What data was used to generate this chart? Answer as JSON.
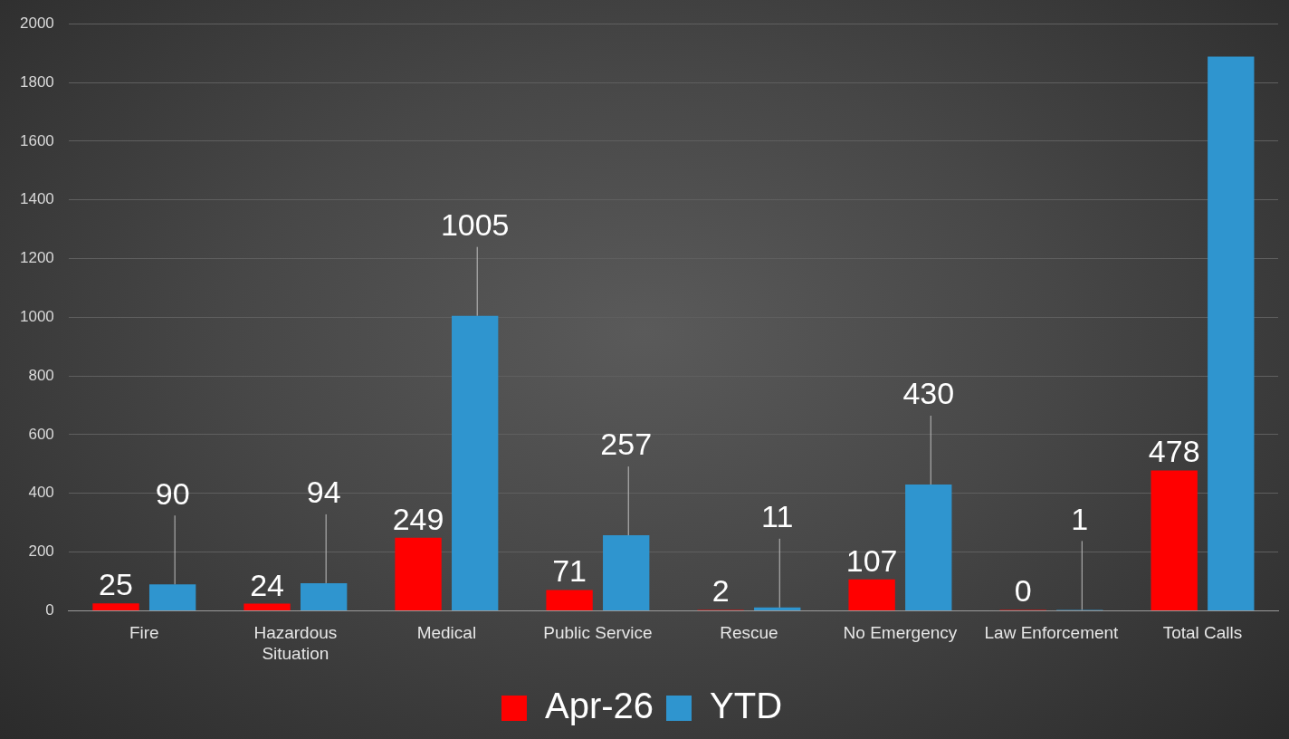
{
  "chart_data": {
    "type": "bar",
    "categories": [
      "Fire",
      "Hazardous Situation",
      "Medical",
      "Public Service",
      "Rescue",
      "No Emergency",
      "Law Enforcement",
      "Total Calls"
    ],
    "series": [
      {
        "name": "Apr-26",
        "color": "#ff0000",
        "values": [
          25,
          24,
          249,
          71,
          2,
          107,
          0,
          478
        ],
        "value_labels": [
          "25",
          "24",
          "249",
          "71",
          "2",
          "107",
          "0",
          "478"
        ]
      },
      {
        "name": "YTD",
        "color": "#2f95cf",
        "values": [
          90,
          94,
          1005,
          257,
          11,
          430,
          1,
          1888
        ],
        "value_labels": [
          "90",
          "94",
          "1005",
          "257",
          "11",
          "430",
          "1",
          null
        ]
      }
    ],
    "ylim": [
      0,
      2000
    ],
    "yticks": [
      0,
      200,
      400,
      600,
      800,
      1000,
      1200,
      1400,
      1600,
      1800,
      2000
    ],
    "grid": "y",
    "legend": "bottom"
  }
}
